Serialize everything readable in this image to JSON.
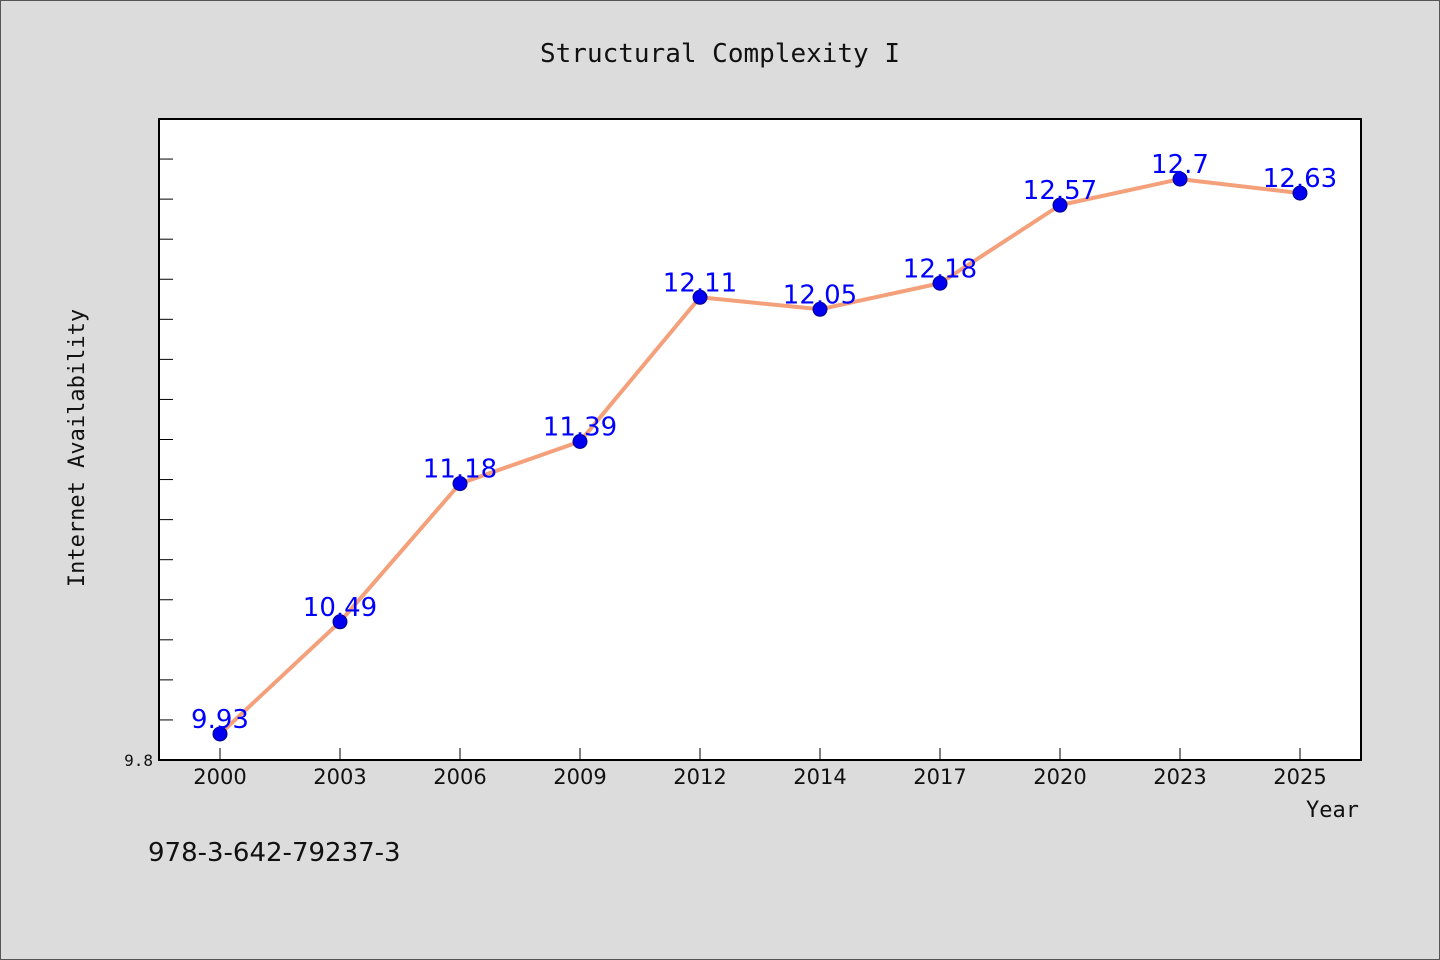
{
  "colors": {
    "background": "#dcdcdc",
    "plot_background": "#ffffff",
    "line": "#f4a07a",
    "marker": "#0000ee",
    "data_label": "#0000ff"
  },
  "footer": {
    "isbn": "978-3-642-79237-3"
  },
  "chart_data": {
    "type": "line",
    "title": "Structural Complexity I",
    "xlabel": "Year",
    "ylabel": "Internet Availability",
    "categories": [
      "2000",
      "2003",
      "2006",
      "2009",
      "2012",
      "2014",
      "2017",
      "2020",
      "2023",
      "2025"
    ],
    "series": [
      {
        "values": [
          9.93,
          10.49,
          11.18,
          11.39,
          12.11,
          12.05,
          12.18,
          12.57,
          12.7,
          12.63
        ],
        "labels": [
          "9.93",
          "10.49",
          "11.18",
          "11.39",
          "12.11",
          "12.05",
          "12.18",
          "12.57",
          "12.7",
          "12.63"
        ]
      }
    ],
    "ylim": [
      9.8,
      13.0
    ],
    "ytick_labels": [
      {
        "value": 9.8,
        "label": "9.8"
      }
    ],
    "minor_tick_step": 0.2,
    "grid": false,
    "legend": "none"
  }
}
